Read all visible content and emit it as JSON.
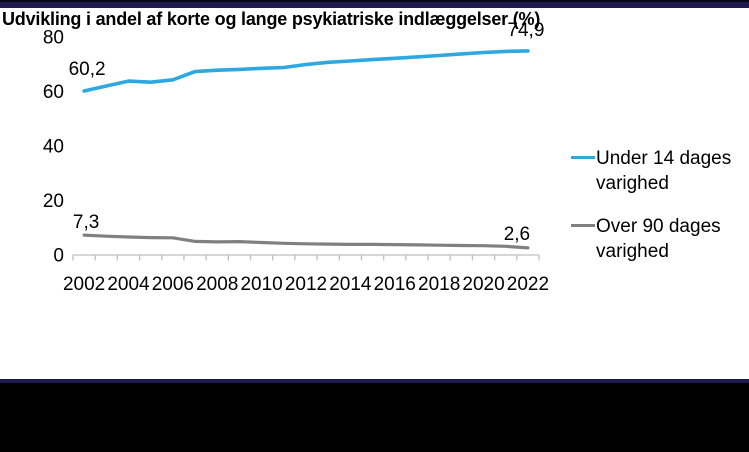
{
  "chart_data": {
    "type": "line",
    "title": "Udvikling i andel af korte og lange psykiatriske indlæggelser (%)",
    "x": [
      2002,
      2003,
      2004,
      2005,
      2006,
      2007,
      2008,
      2009,
      2010,
      2011,
      2012,
      2013,
      2014,
      2015,
      2016,
      2017,
      2018,
      2019,
      2020,
      2021,
      2022
    ],
    "series": [
      {
        "name": "Under 14 dages varighed",
        "color": "#2DA8E0",
        "values": [
          60.2,
          62.0,
          63.8,
          63.4,
          64.3,
          67.3,
          67.8,
          68.1,
          68.5,
          68.8,
          69.9,
          70.7,
          71.2,
          71.7,
          72.2,
          72.7,
          73.2,
          73.8,
          74.3,
          74.7,
          74.9
        ]
      },
      {
        "name": "Over 90 dages varighed",
        "color": "#808080",
        "values": [
          7.3,
          6.9,
          6.6,
          6.4,
          6.3,
          5.0,
          4.8,
          4.9,
          4.6,
          4.3,
          4.1,
          4.0,
          3.9,
          3.9,
          3.8,
          3.7,
          3.6,
          3.5,
          3.4,
          3.2,
          2.6
        ]
      }
    ],
    "ylim": [
      0,
      80
    ],
    "yticks": [
      0,
      20,
      40,
      60,
      80
    ],
    "ytick_labels": [
      "0",
      "20",
      "40",
      "60",
      "80"
    ],
    "xtick_labels": [
      "2002",
      "2004",
      "2006",
      "2008",
      "2010",
      "2012",
      "2014",
      "2016",
      "2018",
      "2020",
      "2022"
    ],
    "annotations": [
      {
        "series": 0,
        "year": 2002,
        "value": 60.2,
        "text": "60,2"
      },
      {
        "series": 0,
        "year": 2022,
        "value": 74.9,
        "text": "74,9"
      },
      {
        "series": 1,
        "year": 2002,
        "value": 7.3,
        "text": "7,3"
      },
      {
        "series": 1,
        "year": 2022,
        "value": 2.6,
        "text": "2,6"
      }
    ],
    "grid": false,
    "legend_position": "right",
    "axis_color": "#BFBFBF"
  }
}
